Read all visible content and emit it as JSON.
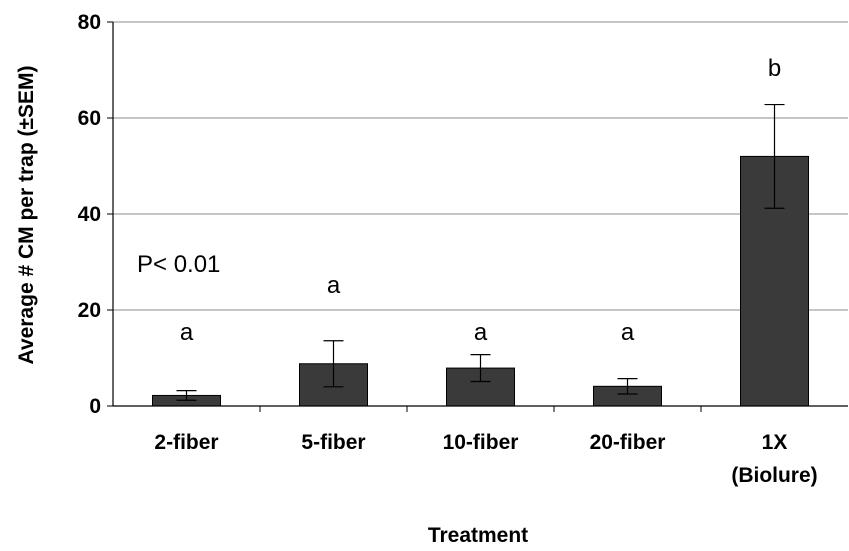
{
  "chart_data": {
    "type": "bar",
    "categories": [
      [
        "2-fiber"
      ],
      [
        "5-fiber"
      ],
      [
        "10-fiber"
      ],
      [
        "20-fiber"
      ],
      [
        "1X",
        "(Biolure)"
      ]
    ],
    "values": [
      2.2,
      8.8,
      7.9,
      4.1,
      52.0
    ],
    "errors": [
      1.0,
      4.8,
      2.8,
      1.6,
      10.8
    ],
    "significance_letters": [
      "a",
      "a",
      "a",
      "a",
      "b"
    ],
    "xlabel": "Treatment",
    "ylabel": "Average # CM per trap (±SEM)",
    "ylim": [
      0,
      80
    ],
    "yticks": [
      0,
      20,
      40,
      60,
      80
    ],
    "grid": "horizontal major",
    "annotation": "P< 0.01",
    "colors": {
      "bar": "#3a3a3a",
      "grid": "#8c8c8c",
      "axis": "#000000"
    }
  }
}
